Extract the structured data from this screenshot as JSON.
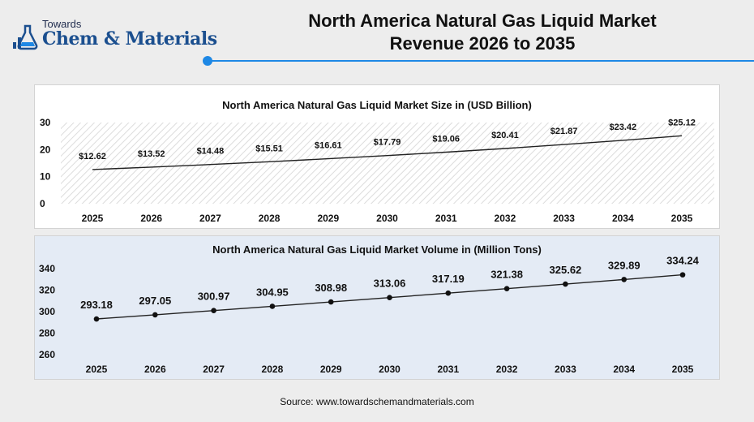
{
  "logo": {
    "icon": "flask-icon",
    "line1": "Towards",
    "line2": "Chem & Materials"
  },
  "title": {
    "line1": "North America Natural Gas Liquid Market",
    "line2": "Revenue 2026 to 2035"
  },
  "colors": {
    "accent": "#1e88e5",
    "line": "#222222",
    "panel2_bg": "#e4ebf5"
  },
  "chart_data": [
    {
      "type": "line",
      "title": "North America Natural Gas Liquid Market Size in (USD Billion)",
      "x": [
        "2025",
        "2026",
        "2027",
        "2028",
        "2029",
        "2030",
        "2031",
        "2032",
        "2033",
        "2034",
        "2035"
      ],
      "series": [
        {
          "values": [
            12.62,
            13.52,
            14.48,
            15.51,
            16.61,
            17.79,
            19.06,
            20.41,
            21.87,
            23.42,
            25.12
          ],
          "labels": [
            "$12.62",
            "$13.52",
            "$14.48",
            "$15.51",
            "$16.61",
            "$17.79",
            "$19.06",
            "$20.41",
            "$21.87",
            "$23.42",
            "$25.12"
          ]
        }
      ],
      "ylim": [
        0,
        30
      ],
      "yticks": [
        "0",
        "10",
        "20",
        "30"
      ],
      "markers": false,
      "grid": false,
      "xlabel": "",
      "ylabel": ""
    },
    {
      "type": "line",
      "title": "North America Natural Gas Liquid Market Volume in (Million Tons)",
      "x": [
        "2025",
        "2026",
        "2027",
        "2028",
        "2029",
        "2030",
        "2031",
        "2032",
        "2033",
        "2034",
        "2035"
      ],
      "series": [
        {
          "values": [
            293.18,
            297.05,
            300.97,
            304.95,
            308.98,
            313.06,
            317.19,
            321.38,
            325.62,
            329.89,
            334.24
          ],
          "labels": [
            "293.18",
            "297.05",
            "300.97",
            "304.95",
            "308.98",
            "313.06",
            "317.19",
            "321.38",
            "325.62",
            "329.89",
            "334.24"
          ]
        }
      ],
      "ylim": [
        260,
        340
      ],
      "yticks": [
        "260",
        "280",
        "300",
        "320",
        "340"
      ],
      "markers": true,
      "grid": false,
      "xlabel": "",
      "ylabel": ""
    }
  ],
  "source": "Source: www.towardschemandmaterials.com"
}
